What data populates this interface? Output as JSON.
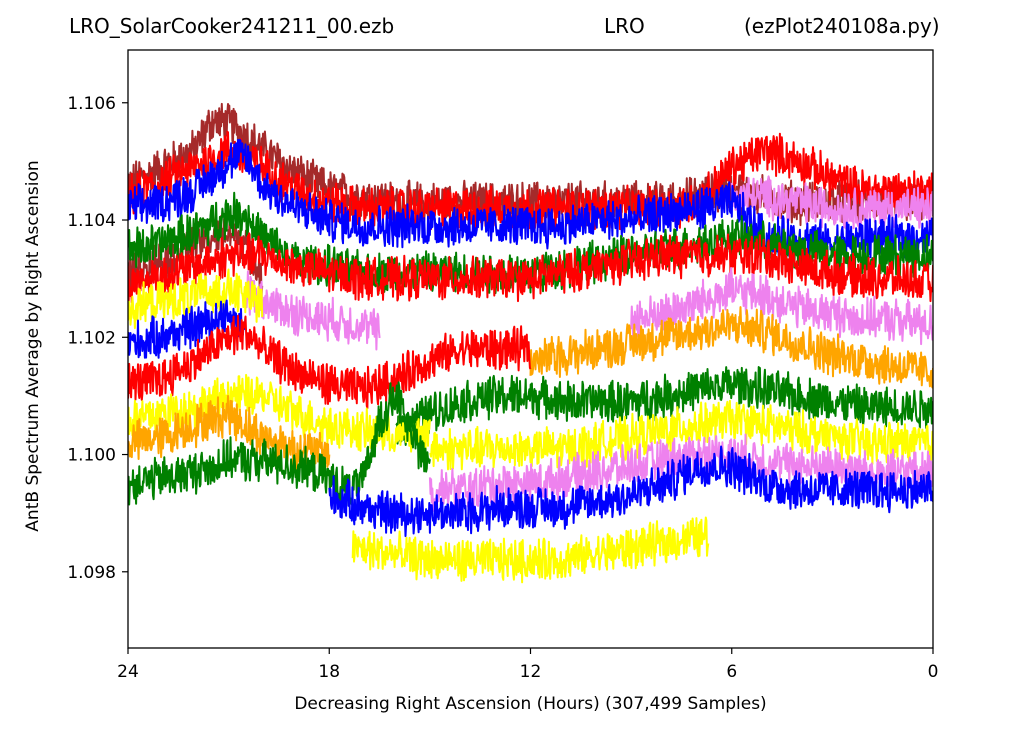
{
  "chart_data": {
    "type": "line",
    "title_segments": [
      "LRO_SolarCooker241211_00.ezb",
      "LRO",
      "(ezPlot240108a.py)"
    ],
    "xlabel": "Decreasing Right Ascension (Hours) (307,499 Samples)",
    "ylabel": "AntB Spectrum Average by Right Ascension",
    "xlim": [
      24,
      0
    ],
    "ylim": [
      1.0967,
      1.1069
    ],
    "x_ticks": [
      24,
      18,
      12,
      6,
      0
    ],
    "y_ticks": [
      1.098,
      1.1,
      1.102,
      1.104,
      1.106
    ],
    "y_tick_labels": [
      "1.098",
      "1.100",
      "1.102",
      "1.104",
      "1.106"
    ],
    "grid": false,
    "legend": "none",
    "series": [
      {
        "color": "#a52a2a",
        "x": [
          24,
          22,
          21.5,
          20.8,
          20,
          19,
          18,
          17,
          16,
          15,
          14,
          13,
          12,
          11,
          10,
          9,
          8,
          7,
          6,
          5,
          4,
          3,
          2,
          1,
          0
        ],
        "y": [
          1.1046,
          1.1052,
          1.1057,
          1.1056,
          1.1052,
          1.1048,
          1.1045,
          1.1044,
          1.1043,
          1.1043,
          1.1043,
          1.1043,
          1.1043,
          1.1043,
          1.1043,
          1.1043,
          1.1043,
          1.1044,
          1.1045,
          1.1044,
          1.1043,
          1.1043,
          1.1043,
          1.1043,
          1.1043
        ]
      },
      {
        "color": "#ff0000",
        "x": [
          24,
          22,
          21,
          20,
          19,
          18,
          17,
          16,
          15,
          14,
          13,
          12,
          11,
          10,
          9,
          8,
          7,
          6,
          5,
          4,
          3,
          2,
          1,
          0
        ],
        "y": [
          1.1044,
          1.1049,
          1.1052,
          1.1049,
          1.1045,
          1.1043,
          1.1042,
          1.1042,
          1.1042,
          1.1042,
          1.1042,
          1.1042,
          1.1042,
          1.1042,
          1.1042,
          1.1042,
          1.1043,
          1.1049,
          1.1052,
          1.105,
          1.1047,
          1.1045,
          1.1045,
          1.1045
        ]
      },
      {
        "color": "#ee82ee",
        "x": [
          6,
          5,
          4,
          3,
          2,
          1,
          0
        ],
        "y": [
          1.1044,
          1.1044,
          1.1043,
          1.1042,
          1.1042,
          1.1042,
          1.1042
        ]
      },
      {
        "color": "#0000ff",
        "x": [
          24,
          23,
          22,
          21,
          20.5,
          20,
          19,
          18,
          17,
          16,
          15,
          14,
          13,
          12,
          11,
          10,
          9,
          8,
          7,
          6,
          5,
          4,
          3,
          2,
          1,
          0
        ],
        "y": [
          1.1042,
          1.1043,
          1.1045,
          1.105,
          1.1051,
          1.1046,
          1.1042,
          1.104,
          1.1039,
          1.1039,
          1.1039,
          1.1039,
          1.1039,
          1.1039,
          1.1039,
          1.104,
          1.104,
          1.1041,
          1.1042,
          1.1043,
          1.1037,
          1.1037,
          1.1036,
          1.1037,
          1.1037,
          1.1037
        ]
      },
      {
        "color": "#a52a2a",
        "x": [
          24,
          23,
          22,
          21,
          20.5,
          20
        ],
        "y": [
          1.1031,
          1.1033,
          1.1036,
          1.1038,
          1.1036,
          1.103
        ]
      },
      {
        "color": "#008000",
        "x": [
          24,
          23,
          22,
          21,
          20.5,
          20,
          19,
          18,
          17,
          16,
          15,
          14,
          13,
          12,
          11,
          10,
          9,
          8,
          7,
          6,
          5,
          4,
          3,
          2,
          1,
          0
        ],
        "y": [
          1.1035,
          1.1036,
          1.1038,
          1.1041,
          1.1041,
          1.1037,
          1.1033,
          1.1032,
          1.1031,
          1.1031,
          1.1031,
          1.1031,
          1.1031,
          1.1031,
          1.1032,
          1.1033,
          1.1034,
          1.1035,
          1.1036,
          1.1037,
          1.1036,
          1.1035,
          1.1034,
          1.1034,
          1.1034,
          1.1034
        ]
      },
      {
        "color": "#ff0000",
        "x": [
          24,
          22,
          21,
          20,
          19,
          18,
          17,
          16,
          15,
          14,
          13,
          12,
          11,
          10,
          9,
          8,
          7,
          6,
          5,
          4,
          3,
          2,
          1,
          0
        ],
        "y": [
          1.1029,
          1.1032,
          1.1034,
          1.1034,
          1.1032,
          1.1031,
          1.103,
          1.103,
          1.103,
          1.103,
          1.103,
          1.103,
          1.1031,
          1.1032,
          1.1033,
          1.1034,
          1.1034,
          1.1034,
          1.1034,
          1.1032,
          1.1031,
          1.103,
          1.103,
          1.1029
        ]
      },
      {
        "color": "#ee82ee",
        "x": [
          20.5,
          20,
          19,
          18,
          17,
          16.5
        ],
        "y": [
          1.1028,
          1.1026,
          1.1024,
          1.1023,
          1.1022,
          1.1021
        ]
      },
      {
        "color": "#ee82ee",
        "x": [
          9,
          8,
          7,
          6,
          5,
          4,
          3,
          2,
          1,
          0
        ],
        "y": [
          1.1023,
          1.1024,
          1.1026,
          1.1028,
          1.1027,
          1.1025,
          1.1024,
          1.1023,
          1.1023,
          1.1022
        ]
      },
      {
        "color": "#ffff00",
        "x": [
          24,
          23,
          22,
          21,
          20
        ],
        "y": [
          1.1025,
          1.1026,
          1.1027,
          1.1028,
          1.1026
        ]
      },
      {
        "color": "#0000ff",
        "x": [
          24,
          23,
          22,
          21,
          20.5
        ],
        "y": [
          1.1019,
          1.102,
          1.1022,
          1.1024,
          1.1021
        ]
      },
      {
        "color": "#ffa500",
        "x": [
          12,
          11,
          10,
          9,
          8,
          7,
          6,
          5,
          4,
          3,
          2,
          1,
          0
        ],
        "y": [
          1.1016,
          1.1017,
          1.1018,
          1.1019,
          1.102,
          1.1021,
          1.1022,
          1.1021,
          1.1019,
          1.1017,
          1.1016,
          1.1015,
          1.1014
        ]
      },
      {
        "color": "#ff0000",
        "x": [
          24,
          23,
          22,
          21,
          20.5,
          20,
          19,
          18,
          17,
          16,
          15,
          14,
          13,
          12
        ],
        "y": [
          1.1012,
          1.1013,
          1.1016,
          1.102,
          1.1021,
          1.1018,
          1.1014,
          1.1012,
          1.1011,
          1.1013,
          1.1016,
          1.1018,
          1.1018,
          1.1018
        ]
      },
      {
        "color": "#008000",
        "x": [
          16,
          15,
          14,
          13,
          12,
          11,
          10,
          9,
          8,
          7,
          6,
          5,
          4,
          3,
          2,
          1,
          0
        ],
        "y": [
          1.1004,
          1.1007,
          1.1009,
          1.101,
          1.101,
          1.1009,
          1.1009,
          1.1009,
          1.101,
          1.1011,
          1.1012,
          1.1011,
          1.101,
          1.1009,
          1.1008,
          1.1008,
          1.1008
        ]
      },
      {
        "color": "#ffff00",
        "x": [
          24,
          23,
          22,
          21,
          20,
          19,
          18,
          17,
          16,
          15
        ],
        "y": [
          1.1006,
          1.1007,
          1.1008,
          1.101,
          1.101,
          1.1007,
          1.1005,
          1.1004,
          1.1003,
          1.1004
        ]
      },
      {
        "color": "#ffa500",
        "x": [
          24,
          23,
          22,
          21,
          20,
          19,
          18
        ],
        "y": [
          1.1002,
          1.1003,
          1.1005,
          1.1007,
          1.1003,
          1.1001,
          1.1
        ]
      },
      {
        "color": "#ffff00",
        "x": [
          15,
          14,
          13,
          12,
          11,
          10,
          9,
          8,
          7,
          6,
          5,
          4,
          3,
          2,
          1,
          0
        ],
        "y": [
          1.1001,
          1.1001,
          1.1001,
          1.1001,
          1.1001,
          1.1002,
          1.1003,
          1.1004,
          1.1005,
          1.1006,
          1.1005,
          1.1004,
          1.1003,
          1.1002,
          1.1002,
          1.1002
        ]
      },
      {
        "color": "#ee82ee",
        "x": [
          15,
          14,
          13,
          12,
          11,
          10,
          9,
          8,
          7,
          6,
          5,
          4,
          3,
          2,
          1,
          0
        ],
        "y": [
          1.0994,
          1.0994,
          1.0995,
          1.0995,
          1.0996,
          1.0997,
          1.0998,
          1.0999,
          1.1,
          1.1,
          1.0999,
          1.0998,
          1.0998,
          1.0997,
          1.0997,
          1.0997
        ]
      },
      {
        "color": "#008000",
        "x": [
          24,
          23,
          22,
          21,
          20,
          19,
          18,
          17.5,
          17,
          16.5,
          16,
          15.6,
          15
        ],
        "y": [
          1.0995,
          1.0996,
          1.0997,
          1.0999,
          1.0999,
          1.0998,
          1.0996,
          1.0994,
          1.0995,
          1.1006,
          1.101,
          1.1004,
          1.0998
        ]
      },
      {
        "color": "#0000ff",
        "x": [
          18,
          17,
          16,
          15,
          14,
          13,
          12,
          11,
          10,
          9,
          8,
          7,
          6,
          5,
          4,
          3,
          2,
          1,
          0
        ],
        "y": [
          1.0993,
          1.0991,
          1.099,
          1.099,
          1.099,
          1.0991,
          1.0991,
          1.0991,
          1.0992,
          1.0993,
          1.0995,
          1.0998,
          1.0998,
          1.0995,
          1.0994,
          1.0994,
          1.0994,
          1.0994,
          1.0994
        ]
      },
      {
        "color": "#ffff00",
        "x": [
          17.3,
          16,
          15,
          14,
          13,
          12,
          11,
          10,
          9,
          8,
          7,
          6.7
        ],
        "y": [
          1.0984,
          1.0983,
          1.0982,
          1.0982,
          1.0982,
          1.0982,
          1.0982,
          1.0983,
          1.0984,
          1.0985,
          1.0986,
          1.0986
        ]
      }
    ]
  }
}
